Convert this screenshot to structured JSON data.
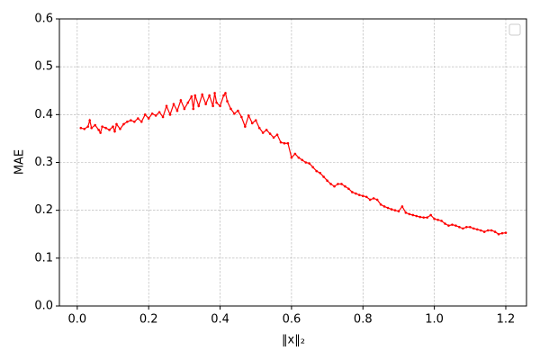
{
  "chart_data": {
    "type": "line",
    "xlabel": "‖x‖₂",
    "ylabel": "MAE",
    "xlim": [
      -0.05,
      1.258
    ],
    "ylim": [
      0,
      0.6
    ],
    "xticks": [
      {
        "value": 0,
        "label": "0.0"
      },
      0.2,
      0.4,
      0.6,
      0.8,
      {
        "value": 1,
        "label": "1.0"
      },
      1.2
    ],
    "yticks": [
      {
        "value": 0,
        "label": "0.0"
      },
      0.1,
      0.2,
      0.3,
      0.4,
      0.5,
      0.6
    ],
    "grid": true,
    "legend": "upper right",
    "series": [
      {
        "color": "#ff0000",
        "x": [
          0.01,
          0.02,
          0.03,
          0.035,
          0.04,
          0.05,
          0.06,
          0.065,
          0.07,
          0.08,
          0.09,
          0.1,
          0.105,
          0.11,
          0.12,
          0.13,
          0.14,
          0.15,
          0.16,
          0.17,
          0.18,
          0.19,
          0.2,
          0.21,
          0.22,
          0.23,
          0.24,
          0.25,
          0.26,
          0.27,
          0.28,
          0.29,
          0.3,
          0.31,
          0.32,
          0.325,
          0.33,
          0.34,
          0.35,
          0.36,
          0.37,
          0.38,
          0.385,
          0.39,
          0.4,
          0.41,
          0.415,
          0.42,
          0.43,
          0.44,
          0.45,
          0.46,
          0.47,
          0.48,
          0.49,
          0.5,
          0.51,
          0.52,
          0.53,
          0.54,
          0.55,
          0.56,
          0.57,
          0.58,
          0.59,
          0.6,
          0.61,
          0.62,
          0.63,
          0.64,
          0.65,
          0.66,
          0.67,
          0.68,
          0.69,
          0.7,
          0.71,
          0.72,
          0.73,
          0.74,
          0.75,
          0.76,
          0.77,
          0.78,
          0.79,
          0.8,
          0.81,
          0.82,
          0.83,
          0.84,
          0.85,
          0.86,
          0.87,
          0.88,
          0.89,
          0.9,
          0.91,
          0.92,
          0.93,
          0.94,
          0.95,
          0.96,
          0.97,
          0.98,
          0.99,
          1.0,
          1.01,
          1.02,
          1.03,
          1.04,
          1.05,
          1.06,
          1.07,
          1.08,
          1.09,
          1.1,
          1.11,
          1.12,
          1.13,
          1.14,
          1.15,
          1.16,
          1.17,
          1.18,
          1.19,
          1.2
        ],
        "values": [
          0.372,
          0.37,
          0.375,
          0.388,
          0.372,
          0.378,
          0.368,
          0.362,
          0.375,
          0.372,
          0.368,
          0.375,
          0.365,
          0.38,
          0.37,
          0.38,
          0.385,
          0.388,
          0.385,
          0.392,
          0.385,
          0.4,
          0.392,
          0.402,
          0.398,
          0.405,
          0.395,
          0.418,
          0.4,
          0.422,
          0.408,
          0.43,
          0.412,
          0.425,
          0.438,
          0.412,
          0.44,
          0.418,
          0.442,
          0.422,
          0.44,
          0.418,
          0.445,
          0.425,
          0.418,
          0.44,
          0.445,
          0.428,
          0.412,
          0.402,
          0.408,
          0.395,
          0.375,
          0.398,
          0.382,
          0.388,
          0.372,
          0.362,
          0.368,
          0.36,
          0.352,
          0.358,
          0.342,
          0.34,
          0.34,
          0.31,
          0.318,
          0.31,
          0.305,
          0.3,
          0.298,
          0.29,
          0.282,
          0.278,
          0.27,
          0.262,
          0.255,
          0.25,
          0.255,
          0.255,
          0.25,
          0.245,
          0.238,
          0.235,
          0.232,
          0.23,
          0.228,
          0.222,
          0.225,
          0.222,
          0.212,
          0.208,
          0.205,
          0.202,
          0.2,
          0.198,
          0.208,
          0.195,
          0.192,
          0.19,
          0.188,
          0.186,
          0.185,
          0.185,
          0.19,
          0.182,
          0.18,
          0.178,
          0.172,
          0.168,
          0.17,
          0.168,
          0.165,
          0.162,
          0.165,
          0.165,
          0.162,
          0.16,
          0.158,
          0.155,
          0.158,
          0.158,
          0.155,
          0.15,
          0.152,
          0.153
        ]
      }
    ]
  }
}
